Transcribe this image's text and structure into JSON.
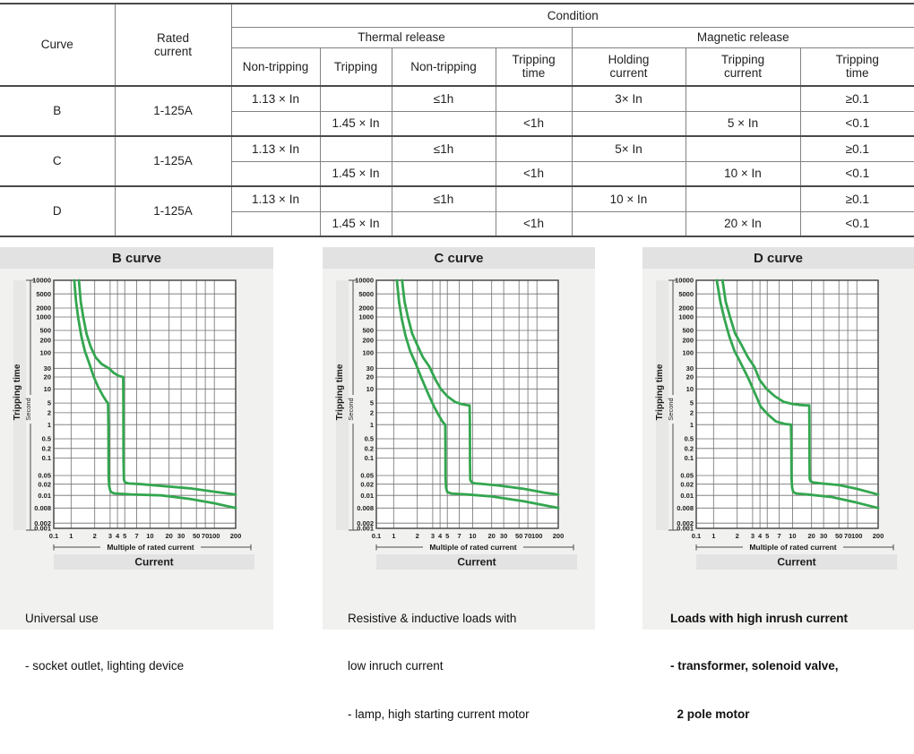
{
  "table": {
    "header": {
      "curve": "Curve",
      "rated_current": "Rated current",
      "condition": "Condition",
      "thermal": "Thermal release",
      "magnetic": "Magnetic release",
      "cols": [
        "Non-tripping",
        "Tripping",
        "Non-tripping",
        "Tripping time",
        "Holding current",
        "Tripping current",
        "Tripping time"
      ]
    },
    "rows": [
      {
        "curve": "B",
        "rated": "1-125A",
        "r1": {
          "c1": "1.13 × In",
          "c2": "",
          "c3": "≤1h",
          "c4": "",
          "c5": "3× In",
          "c6": "",
          "c7": "≥0.1"
        },
        "r2": {
          "c1": "",
          "c2": "1.45 × In",
          "c3": "",
          "c4": "<1h",
          "c5": "",
          "c6": "5 × In",
          "c7": "<0.1"
        }
      },
      {
        "curve": "C",
        "rated": "1-125A",
        "r1": {
          "c1": "1.13 × In",
          "c2": "",
          "c3": "≤1h",
          "c4": "",
          "c5": "5× In",
          "c6": "",
          "c7": "≥0.1"
        },
        "r2": {
          "c1": "",
          "c2": "1.45 × In",
          "c3": "",
          "c4": "<1h",
          "c5": "",
          "c6": "10 × In",
          "c7": "<0.1"
        }
      },
      {
        "curve": "D",
        "rated": "1-125A",
        "r1": {
          "c1": "1.13 × In",
          "c2": "",
          "c3": "≤1h",
          "c4": "",
          "c5": "10 × In",
          "c6": "",
          "c7": "≥0.1"
        },
        "r2": {
          "c1": "",
          "c2": "1.45 × In",
          "c3": "",
          "c4": "<1h",
          "c5": "",
          "c6": "20 × In",
          "c7": "<0.1"
        }
      }
    ]
  },
  "panels": [
    {
      "title": "B curve",
      "description": [
        "Universal use",
        "- socket outlet, lighting device"
      ]
    },
    {
      "title": "C curve",
      "description": [
        "Resistive & inductive loads with",
        "low inruch current",
        "- lamp, high starting current motor"
      ]
    },
    {
      "title": "D curve",
      "description": [
        "Loads with high inrush current",
        "- transformer, solenoid valve,",
        "  2 pole motor"
      ]
    }
  ],
  "chart_data": [
    {
      "type": "line",
      "title": "B curve",
      "ylabel": "Tripping time",
      "ylabel_unit": "Second",
      "xlabel": "Multiple of rated current",
      "xlabel2": "Current",
      "x_ticks": [
        "0.1",
        "1",
        "2",
        "3",
        "4",
        "5",
        "7",
        "10",
        "20",
        "30",
        "50",
        "70",
        "100",
        "200"
      ],
      "y_ticks": [
        "10000",
        "5000",
        "2000",
        "1000",
        "500",
        "200",
        "100",
        "30",
        "20",
        "10",
        "5",
        "2",
        "1",
        "0.5",
        "0.2",
        "0.1",
        "0.05",
        "0.02",
        "0.01",
        "0.008",
        "0.002",
        "0.001"
      ],
      "x_range": [
        0.1,
        200
      ],
      "y_range": [
        0.001,
        10000
      ],
      "grid": true,
      "curve_color": "#33a64f",
      "series": [
        {
          "name": "lower_band",
          "points": [
            [
              1.1,
              10000
            ],
            [
              1.16,
              3000
            ],
            [
              1.24,
              900
            ],
            [
              1.35,
              300
            ],
            [
              1.5,
              110
            ],
            [
              1.7,
              45
            ],
            [
              1.95,
              20
            ],
            [
              2.2,
              11
            ],
            [
              2.5,
              7
            ],
            [
              2.75,
              5.3
            ],
            [
              2.84,
              5
            ],
            [
              2.87,
              1
            ],
            [
              2.88,
              0.05
            ],
            [
              2.92,
              0.018
            ],
            [
              3.05,
              0.0125
            ],
            [
              3.5,
              0.0113
            ],
            [
              6,
              0.0106
            ],
            [
              15,
              0.01
            ],
            [
              40,
              0.0094
            ],
            [
              100,
              0.0087
            ],
            [
              200,
              0.008
            ]
          ]
        },
        {
          "name": "upper_band",
          "points": [
            [
              1.26,
              10000
            ],
            [
              1.33,
              3000
            ],
            [
              1.43,
              1000
            ],
            [
              1.58,
              350
            ],
            [
              1.78,
              140
            ],
            [
              2.05,
              70
            ],
            [
              2.4,
              42
            ],
            [
              2.9,
              30
            ],
            [
              3.5,
              24
            ],
            [
              4.2,
              21
            ],
            [
              4.65,
              20.1
            ],
            [
              4.78,
              20
            ],
            [
              4.8,
              5
            ],
            [
              4.82,
              0.1
            ],
            [
              4.88,
              0.032
            ],
            [
              5.05,
              0.024
            ],
            [
              5.6,
              0.0215
            ],
            [
              8,
              0.02
            ],
            [
              15,
              0.018
            ],
            [
              40,
              0.0155
            ],
            [
              100,
              0.0125
            ],
            [
              200,
              0.0105
            ]
          ]
        }
      ]
    },
    {
      "type": "line",
      "title": "C curve",
      "ylabel": "Tripping time",
      "ylabel_unit": "Second",
      "xlabel": "Multiple of rated current",
      "xlabel2": "Current",
      "x_ticks": [
        "0.1",
        "1",
        "2",
        "3",
        "4",
        "5",
        "7",
        "10",
        "20",
        "30",
        "50",
        "70",
        "100",
        "200"
      ],
      "y_ticks": [
        "10000",
        "5000",
        "2000",
        "1000",
        "500",
        "200",
        "100",
        "30",
        "20",
        "10",
        "5",
        "2",
        "1",
        "0.5",
        "0.2",
        "0.1",
        "0.05",
        "0.02",
        "0.01",
        "0.008",
        "0.002",
        "0.001"
      ],
      "x_range": [
        0.1,
        200
      ],
      "y_range": [
        0.001,
        10000
      ],
      "grid": true,
      "curve_color": "#33a64f",
      "series": [
        {
          "name": "lower_band",
          "points": [
            [
              1.1,
              10000
            ],
            [
              1.17,
              3000
            ],
            [
              1.27,
              900
            ],
            [
              1.42,
              300
            ],
            [
              1.62,
              110
            ],
            [
              1.9,
              45
            ],
            [
              2.25,
              18
            ],
            [
              2.65,
              8
            ],
            [
              3.15,
              3.6
            ],
            [
              3.75,
              1.8
            ],
            [
              4.3,
              1.2
            ],
            [
              4.62,
              1.02
            ],
            [
              4.7,
              1
            ],
            [
              4.72,
              0.3
            ],
            [
              4.74,
              0.04
            ],
            [
              4.82,
              0.016
            ],
            [
              5.0,
              0.0122
            ],
            [
              5.6,
              0.0112
            ],
            [
              9,
              0.0105
            ],
            [
              20,
              0.0098
            ],
            [
              60,
              0.009
            ],
            [
              200,
              0.008
            ]
          ]
        },
        {
          "name": "upper_band",
          "points": [
            [
              1.28,
              10000
            ],
            [
              1.38,
              3000
            ],
            [
              1.52,
              1000
            ],
            [
              1.72,
              380
            ],
            [
              1.98,
              160
            ],
            [
              2.32,
              70
            ],
            [
              2.75,
              34
            ],
            [
              3.35,
              17
            ],
            [
              4.1,
              10
            ],
            [
              5.0,
              7
            ],
            [
              6.2,
              5.3
            ],
            [
              7.5,
              4.5
            ],
            [
              8.7,
              4.1
            ],
            [
              9.25,
              4
            ],
            [
              9.3,
              1
            ],
            [
              9.32,
              0.08
            ],
            [
              9.4,
              0.032
            ],
            [
              9.7,
              0.025
            ],
            [
              10.5,
              0.022
            ],
            [
              14,
              0.0205
            ],
            [
              25,
              0.0185
            ],
            [
              60,
              0.015
            ],
            [
              130,
              0.0118
            ],
            [
              200,
              0.0105
            ]
          ]
        }
      ]
    },
    {
      "type": "line",
      "title": "D curve",
      "ylabel": "Tripping time",
      "ylabel_unit": "Second",
      "xlabel": "Multiple of rated current",
      "xlabel2": "Current",
      "x_ticks": [
        "0.1",
        "1",
        "2",
        "3",
        "4",
        "5",
        "7",
        "10",
        "20",
        "30",
        "50",
        "70",
        "100",
        "200"
      ],
      "y_ticks": [
        "10000",
        "5000",
        "2000",
        "1000",
        "500",
        "200",
        "100",
        "30",
        "20",
        "10",
        "5",
        "2",
        "1",
        "0.5",
        "0.2",
        "0.1",
        "0.05",
        "0.02",
        "0.01",
        "0.008",
        "0.002",
        "0.001"
      ],
      "x_range": [
        0.1,
        200
      ],
      "y_range": [
        0.001,
        10000
      ],
      "grid": true,
      "curve_color": "#33a64f",
      "series": [
        {
          "name": "lower_band",
          "points": [
            [
              1.1,
              10000
            ],
            [
              1.22,
              3000
            ],
            [
              1.38,
              900
            ],
            [
              1.58,
              300
            ],
            [
              1.85,
              110
            ],
            [
              2.2,
              45
            ],
            [
              2.7,
              18
            ],
            [
              3.3,
              8
            ],
            [
              4.1,
              3.6
            ],
            [
              5.1,
              1.8
            ],
            [
              6.4,
              1.2
            ],
            [
              8.2,
              1.04
            ],
            [
              9.6,
              1
            ],
            [
              9.7,
              0.3
            ],
            [
              9.75,
              0.04
            ],
            [
              9.9,
              0.016
            ],
            [
              10.3,
              0.0122
            ],
            [
              11.5,
              0.0112
            ],
            [
              18,
              0.0105
            ],
            [
              40,
              0.0097
            ],
            [
              100,
              0.0088
            ],
            [
              200,
              0.008
            ]
          ]
        },
        {
          "name": "upper_band",
          "points": [
            [
              1.3,
              10000
            ],
            [
              1.43,
              3000
            ],
            [
              1.62,
              1000
            ],
            [
              1.88,
              380
            ],
            [
              2.22,
              160
            ],
            [
              2.65,
              70
            ],
            [
              3.2,
              34
            ],
            [
              3.95,
              17
            ],
            [
              4.9,
              10
            ],
            [
              6.2,
              7
            ],
            [
              7.9,
              5.3
            ],
            [
              10,
              4.6
            ],
            [
              13,
              4.2
            ],
            [
              16.5,
              4.03
            ],
            [
              18.4,
              4
            ],
            [
              18.5,
              1
            ],
            [
              18.55,
              0.09
            ],
            [
              18.7,
              0.035
            ],
            [
              19.3,
              0.027
            ],
            [
              21,
              0.024
            ],
            [
              28,
              0.0215
            ],
            [
              50,
              0.019
            ],
            [
              100,
              0.015
            ],
            [
              160,
              0.0118
            ],
            [
              200,
              0.0105
            ]
          ]
        }
      ]
    }
  ]
}
